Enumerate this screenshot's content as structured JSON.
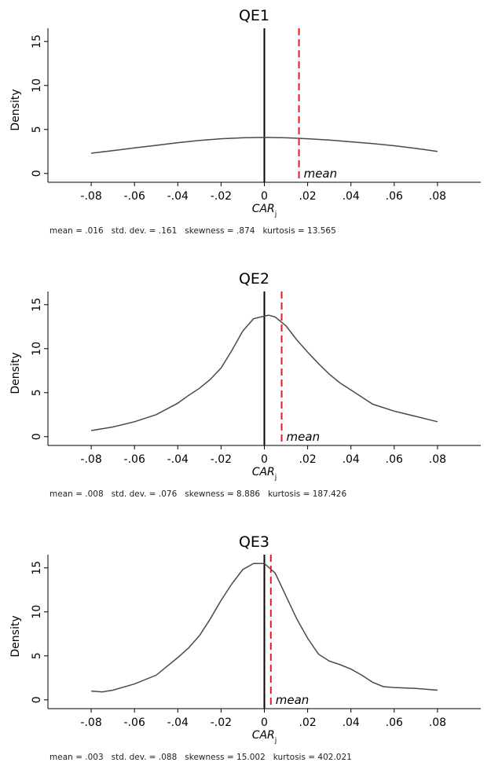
{
  "chart_data": [
    {
      "type": "line",
      "title": "QE1",
      "xlabel": "CAR",
      "xlabel_sub": "j",
      "ylabel": "Density",
      "xlim": [
        -0.1,
        0.1
      ],
      "ylim": [
        -1,
        16.5
      ],
      "x_ticks": [
        -0.08,
        -0.06,
        -0.04,
        -0.02,
        0,
        0.02,
        0.04,
        0.06,
        0.08
      ],
      "x_tick_labels": [
        "-.08",
        "-.06",
        "-.04",
        "-.02",
        "0",
        ".02",
        ".04",
        ".06",
        ".08"
      ],
      "y_ticks": [
        0,
        5,
        10,
        15
      ],
      "y_tick_labels": [
        "0",
        "5",
        "10",
        "15"
      ],
      "mean": 0.016,
      "mean_label": "mean",
      "stats_text": "mean = .016   std. dev. = .161   skewness = .874   kurtosis = 13.565",
      "x": [
        -0.08,
        -0.07,
        -0.06,
        -0.05,
        -0.04,
        -0.03,
        -0.02,
        -0.01,
        0,
        0.01,
        0.02,
        0.03,
        0.04,
        0.05,
        0.06,
        0.07,
        0.08
      ],
      "y": [
        2.3,
        2.6,
        2.9,
        3.2,
        3.5,
        3.75,
        3.95,
        4.05,
        4.1,
        4.05,
        3.95,
        3.8,
        3.6,
        3.4,
        3.15,
        2.85,
        2.5
      ]
    },
    {
      "type": "line",
      "title": "QE2",
      "xlabel": "CAR",
      "xlabel_sub": "j",
      "ylabel": "Density",
      "xlim": [
        -0.1,
        0.1
      ],
      "ylim": [
        -1,
        16.5
      ],
      "x_ticks": [
        -0.08,
        -0.06,
        -0.04,
        -0.02,
        0,
        0.02,
        0.04,
        0.06,
        0.08
      ],
      "x_tick_labels": [
        "-.08",
        "-.06",
        "-.04",
        "-.02",
        "0",
        ".02",
        ".04",
        ".06",
        ".08"
      ],
      "y_ticks": [
        0,
        5,
        10,
        15
      ],
      "y_tick_labels": [
        "0",
        "5",
        "10",
        "15"
      ],
      "mean": 0.008,
      "mean_label": "mean",
      "stats_text": "mean = .008   std. dev. = .076   skewness = 8.886   kurtosis = 187.426",
      "x": [
        -0.08,
        -0.07,
        -0.06,
        -0.05,
        -0.04,
        -0.035,
        -0.03,
        -0.025,
        -0.02,
        -0.015,
        -0.01,
        -0.005,
        0,
        0.002,
        0.005,
        0.01,
        0.015,
        0.02,
        0.025,
        0.03,
        0.035,
        0.04,
        0.05,
        0.06,
        0.07,
        0.08
      ],
      "y": [
        0.7,
        1.1,
        1.7,
        2.5,
        3.8,
        4.7,
        5.5,
        6.5,
        7.8,
        9.8,
        12.0,
        13.4,
        13.7,
        13.8,
        13.6,
        12.6,
        11.0,
        9.6,
        8.3,
        7.1,
        6.1,
        5.3,
        3.7,
        2.9,
        2.3,
        1.7
      ]
    },
    {
      "type": "line",
      "title": "QE3",
      "xlabel": "CAR",
      "xlabel_sub": "j",
      "ylabel": "Density",
      "xlim": [
        -0.1,
        0.1
      ],
      "ylim": [
        -1,
        16.5
      ],
      "x_ticks": [
        -0.08,
        -0.06,
        -0.04,
        -0.02,
        0,
        0.02,
        0.04,
        0.06,
        0.08
      ],
      "x_tick_labels": [
        "-.08",
        "-.06",
        "-.04",
        "-.02",
        "0",
        ".02",
        ".04",
        ".06",
        ".08"
      ],
      "y_ticks": [
        0,
        5,
        10,
        15
      ],
      "y_tick_labels": [
        "0",
        "5",
        "10",
        "15"
      ],
      "mean": 0.003,
      "mean_label": "mean",
      "stats_text": "mean = .003   std. dev. = .088   skewness = 15.002   kurtosis = 402.021",
      "x": [
        -0.08,
        -0.075,
        -0.07,
        -0.06,
        -0.05,
        -0.045,
        -0.04,
        -0.035,
        -0.03,
        -0.025,
        -0.02,
        -0.015,
        -0.01,
        -0.005,
        0,
        0.005,
        0.01,
        0.015,
        0.02,
        0.025,
        0.03,
        0.035,
        0.04,
        0.045,
        0.05,
        0.055,
        0.06,
        0.07,
        0.08
      ],
      "y": [
        1.0,
        0.9,
        1.1,
        1.8,
        2.8,
        3.8,
        4.8,
        5.9,
        7.3,
        9.2,
        11.3,
        13.2,
        14.8,
        15.5,
        15.5,
        14.4,
        11.8,
        9.2,
        7.0,
        5.2,
        4.4,
        4.0,
        3.5,
        2.8,
        2.0,
        1.5,
        1.4,
        1.3,
        1.1
      ]
    }
  ]
}
